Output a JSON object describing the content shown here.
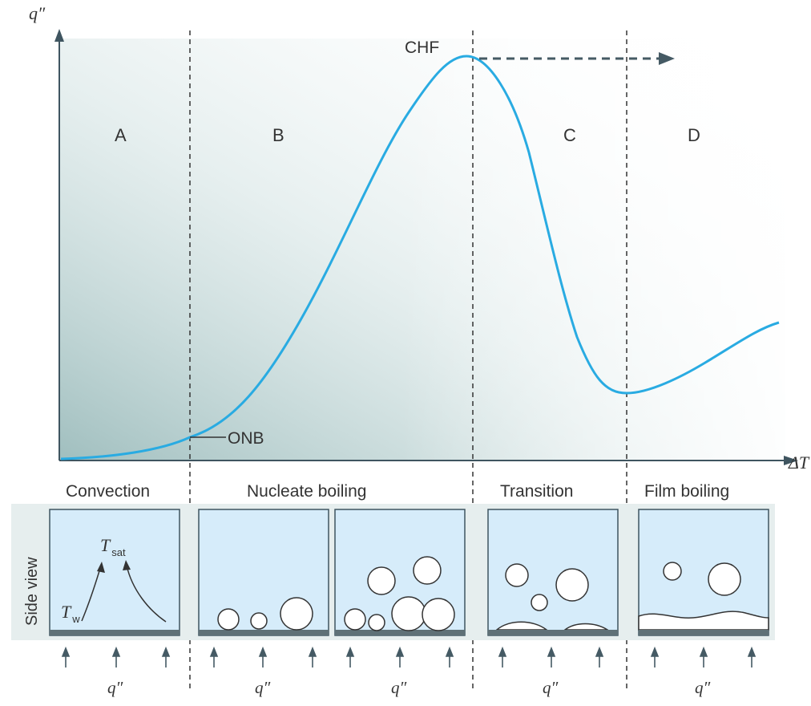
{
  "axes": {
    "y_label": "q″",
    "x_label": "ΔT"
  },
  "regions": {
    "a": "A",
    "b": "B",
    "c": "C",
    "d": "D"
  },
  "annotations": {
    "chf": "CHF",
    "onb": "ONB"
  },
  "regimes": {
    "convection": "Convection",
    "nucleate": "Nucleate boiling",
    "transition": "Transition",
    "film": "Film boiling"
  },
  "side_view_label": "Side view",
  "panel1": {
    "t_sat_main": "T",
    "t_sat_sub": "sat",
    "t_w_main": "T",
    "t_w_sub": "w"
  },
  "heat_flux_labels": [
    "q″",
    "q″",
    "q″",
    "q″",
    "q″"
  ],
  "colors": {
    "curve": "#29abe2",
    "panel_fill": "#d6ecfa",
    "shade": "#9fc0c0",
    "wall": "#5f7177",
    "arrow": "#455a64",
    "side_band": "#e6eeee"
  }
}
